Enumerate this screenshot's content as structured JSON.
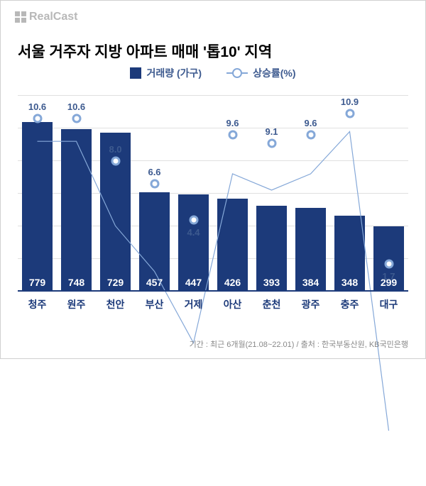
{
  "logo_text": "RealCast",
  "title": "서울 거주자 지방 아파트 매매 '톱10' 지역",
  "legend": {
    "bar": "거래량 (가구)",
    "line": "상승률(%)"
  },
  "chart": {
    "type": "bar+line",
    "categories": [
      "청주",
      "원주",
      "천안",
      "부산",
      "거제",
      "아산",
      "춘천",
      "광주",
      "충주",
      "대구"
    ],
    "bar_values": [
      779,
      748,
      729,
      457,
      447,
      426,
      393,
      384,
      348,
      299
    ],
    "line_values": [
      10.6,
      10.6,
      8.0,
      6.6,
      4.4,
      9.6,
      9.1,
      9.6,
      10.9,
      1.7
    ],
    "bar_color": "#1c3a7a",
    "line_color": "#85a8d8",
    "bar_ymax": 900,
    "line_ymax": 12,
    "line_ymin": 0,
    "grid_count": 6,
    "background_color": "#ffffff",
    "grid_color": "#e0e0e0",
    "label_color": "#1c3a7a",
    "line_label_color": "#3d5a8f"
  },
  "footer": "기간 : 최근 6개월(21.08~22.01) / 출처 : 한국부동산원, KB국민은행"
}
